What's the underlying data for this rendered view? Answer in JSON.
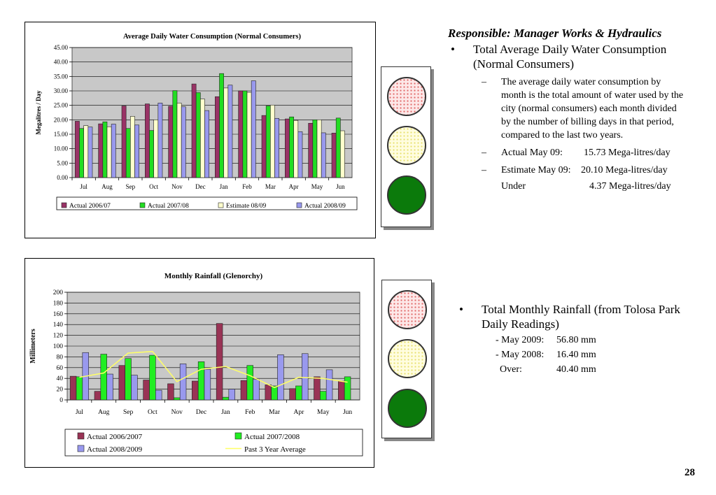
{
  "chart_data": [
    {
      "type": "bar",
      "title": "Average Daily Water Consumption (Normal Consumers)",
      "xlabel": "",
      "ylabel": "Megalitres / Day",
      "ylim": [
        0,
        45
      ],
      "yticks": [
        "0.00",
        "5.00",
        "10.00",
        "15.00",
        "20.00",
        "25.00",
        "30.00",
        "35.00",
        "40.00",
        "45.00"
      ],
      "grid": true,
      "legend_position": "bottom",
      "categories": [
        "Jul",
        "Aug",
        "Sep",
        "Oct",
        "Nov",
        "Dec",
        "Jan",
        "Feb",
        "Mar",
        "Apr",
        "May",
        "Jun"
      ],
      "series": [
        {
          "name": "Actual 2006/07",
          "color": "#993366",
          "values": [
            19.5,
            18.6,
            24.8,
            25.5,
            24.7,
            32.4,
            28.0,
            30.0,
            21.5,
            20.3,
            18.8,
            15.4
          ]
        },
        {
          "name": "Actual 2007/08",
          "color": "#22dd22",
          "values": [
            17.0,
            19.3,
            17.0,
            16.3,
            30.1,
            29.4,
            36.0,
            30.0,
            24.8,
            21.0,
            20.0,
            20.6
          ]
        },
        {
          "name": "Estimate 08/09",
          "color": "#ffffcc",
          "values": [
            18.0,
            17.6,
            21.2,
            20.0,
            25.8,
            27.2,
            31.0,
            29.5,
            25.1,
            19.8,
            20.0,
            16.2
          ]
        },
        {
          "name": "Actual 2008/09",
          "color": "#9999ee",
          "values": [
            17.5,
            18.5,
            18.2,
            25.8,
            24.5,
            23.2,
            32.0,
            33.5,
            20.5,
            15.9,
            15.5,
            0
          ]
        }
      ]
    },
    {
      "type": "bar",
      "title": "Monthly Rainfall (Glenorchy)",
      "xlabel": "",
      "ylabel": "Millimeters",
      "ylim": [
        0,
        200
      ],
      "yticks": [
        "0",
        "20",
        "40",
        "60",
        "80",
        "100",
        "120",
        "140",
        "160",
        "180",
        "200"
      ],
      "grid": true,
      "legend_position": "bottom",
      "categories": [
        "Jul",
        "Aug",
        "Sep",
        "Oct",
        "Nov",
        "Dec",
        "Jan",
        "Feb",
        "Mar",
        "Apr",
        "May",
        "Jun"
      ],
      "series": [
        {
          "name": "Actual 2006/2007",
          "color": "#993355",
          "values": [
            44,
            16,
            64,
            37,
            30,
            35,
            142,
            36,
            28,
            21,
            43,
            35
          ]
        },
        {
          "name": "Actual 2007/2008",
          "color": "#22ee22",
          "values": [
            43,
            85,
            77,
            83,
            4,
            71,
            5,
            64,
            26,
            26,
            16,
            43
          ]
        },
        {
          "name": "Actual 2008/2009",
          "color": "#9999ee",
          "values": [
            88,
            48,
            46,
            18,
            67,
            57,
            20,
            38,
            84,
            86,
            56,
            0
          ]
        }
      ],
      "line_series": {
        "name": "Past 3 Year Average",
        "color": "#ffff66",
        "values": [
          42,
          50,
          87,
          90,
          34,
          57,
          62,
          45,
          23,
          42,
          40,
          33
        ]
      }
    }
  ],
  "panel1": {
    "responsible": "Responsible: Manager Works & Hydraulics",
    "bullet": "•",
    "heading": "Total Average Daily Water Consumption (Normal Consumers)",
    "dash": "–",
    "description": "The average daily water consumption by month is the total amount of water used by the city (normal consumers) each month divided by the number of billing days in that period, compared to the last two years.",
    "actual_label": "Actual May 09:",
    "actual_value": "15.73 Mega-litres/day",
    "estimate_label": "Estimate May 09:",
    "estimate_value": "20.10 Mega-litres/day",
    "under_label": "Under",
    "under_value": "4.37 Mega-litres/day"
  },
  "panel2": {
    "bullet": "•",
    "heading": "Total Monthly Rainfall (from Tolosa Park Daily Readings)",
    "may2009_label": "- May 2009:",
    "may2009_value": "56.80 mm",
    "may2008_label": "- May 2008:",
    "may2008_value": "16.40 mm",
    "over_label": "Over:",
    "over_value": "40.40 mm"
  },
  "page_number": "28"
}
